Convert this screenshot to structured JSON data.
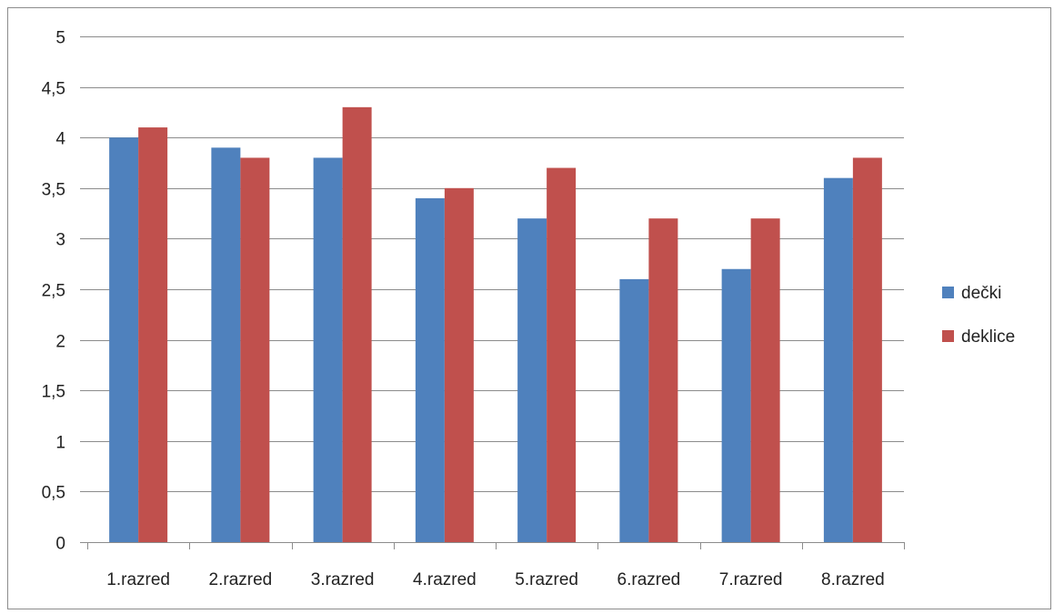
{
  "chart_data": {
    "type": "bar",
    "title": "",
    "xlabel": "",
    "ylabel": "",
    "categories": [
      "1.razred",
      "2.razred",
      "3.razred",
      "4.razred",
      "5.razred",
      "6.razred",
      "7.razred",
      "8.razred"
    ],
    "series": [
      {
        "name": "dečki",
        "color": "#4f81bd",
        "values": [
          4.0,
          3.9,
          3.8,
          3.4,
          3.2,
          2.6,
          2.7,
          3.6
        ]
      },
      {
        "name": "deklice",
        "color": "#c0504d",
        "values": [
          4.1,
          3.8,
          4.3,
          3.5,
          3.7,
          3.2,
          3.2,
          3.8
        ]
      }
    ],
    "ylim": [
      0,
      5
    ],
    "yticks": [
      0,
      0.5,
      1,
      1.5,
      2,
      2.5,
      3,
      3.5,
      4,
      4.5,
      5
    ],
    "ytick_labels": [
      "0",
      "0,5",
      "1",
      "1,5",
      "2",
      "2,5",
      "3",
      "3,5",
      "4",
      "4,5",
      "5"
    ],
    "grid": true,
    "legend_position": "right",
    "gridline_color": "#8c8c8c"
  }
}
